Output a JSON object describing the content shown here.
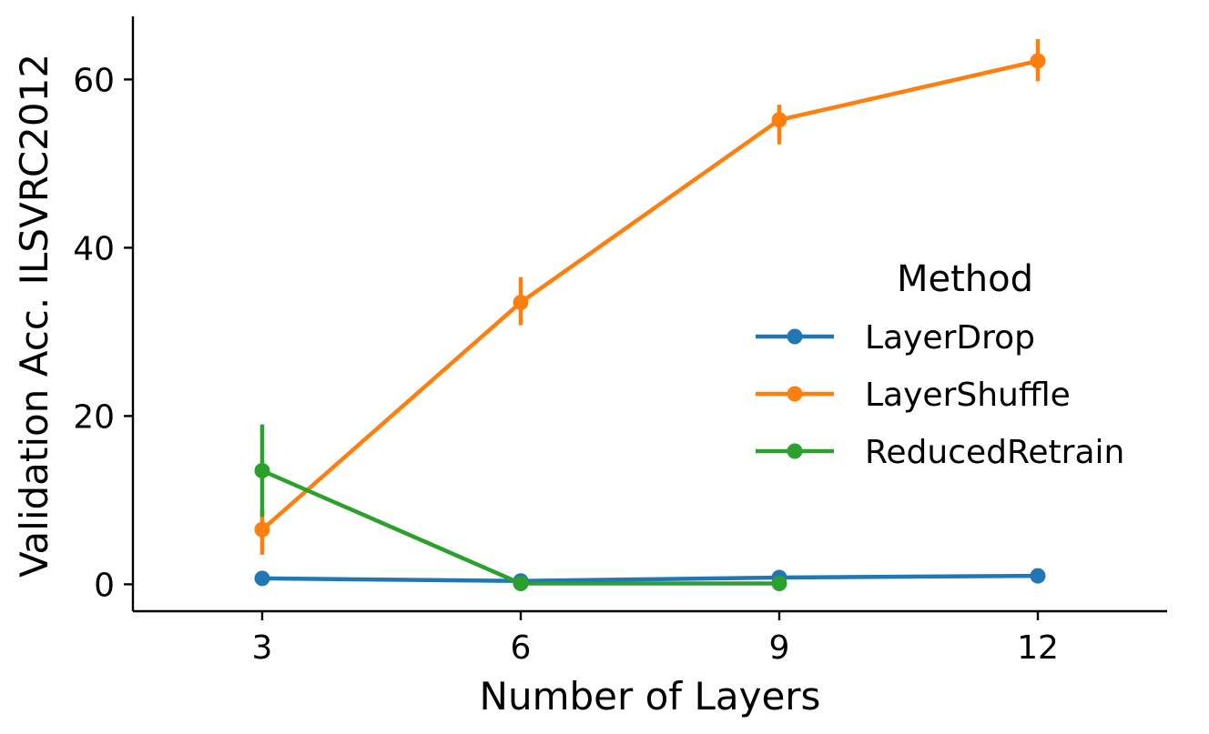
{
  "chart_data": {
    "type": "line",
    "title": "",
    "xlabel": "Number of Layers",
    "ylabel": "Validation Acc. ILSVRC2012",
    "x": [
      3,
      6,
      9,
      12
    ],
    "x_ticks": [
      "3",
      "6",
      "9",
      "12"
    ],
    "y_ticks": [
      "0",
      "20",
      "40",
      "60"
    ],
    "xlim": [
      1.5,
      13.5
    ],
    "ylim": [
      -3.2,
      67.5
    ],
    "grid": false,
    "legend": {
      "title": "Method",
      "placement": "center-right"
    },
    "series": [
      {
        "name": "LayerDrop",
        "color": "#1f77b4",
        "x": [
          3,
          6,
          9,
          12
        ],
        "values": [
          0.7,
          0.4,
          0.8,
          1.0
        ],
        "err_low": [
          0.5,
          0.2,
          0.5,
          0.8
        ],
        "err_high": [
          0.9,
          0.6,
          1.1,
          1.2
        ]
      },
      {
        "name": "LayerShuffle",
        "color": "#ff7f0e",
        "x": [
          3,
          6,
          9,
          12
        ],
        "values": [
          6.5,
          33.5,
          55.2,
          62.2
        ],
        "err_low": [
          3.5,
          30.8,
          52.3,
          59.8
        ],
        "err_high": [
          8.8,
          36.5,
          57.0,
          64.8
        ]
      },
      {
        "name": "ReducedRetrain",
        "color": "#2ca02c",
        "x": [
          3,
          6,
          9
        ],
        "values": [
          13.5,
          0.1,
          0.1
        ],
        "err_low": [
          8.0,
          0.0,
          0.0
        ],
        "err_high": [
          19.0,
          0.2,
          0.2
        ]
      }
    ]
  }
}
